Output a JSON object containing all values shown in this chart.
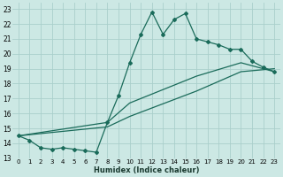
{
  "xlabel": "Humidex (Indice chaleur)",
  "bg_color": "#cce8e4",
  "grid_color": "#aacfcb",
  "line_color": "#1a6b5a",
  "xlim": [
    -0.5,
    23.5
  ],
  "ylim": [
    13,
    23.4
  ],
  "xticks": [
    0,
    1,
    2,
    3,
    4,
    5,
    6,
    7,
    8,
    9,
    10,
    11,
    12,
    13,
    14,
    15,
    16,
    17,
    18,
    19,
    20,
    21,
    22,
    23
  ],
  "yticks": [
    13,
    14,
    15,
    16,
    17,
    18,
    19,
    20,
    21,
    22,
    23
  ],
  "line1_x": [
    0,
    1,
    2,
    3,
    4,
    5,
    6,
    7,
    8,
    9,
    10,
    11,
    12,
    13,
    14,
    15,
    16,
    17,
    18,
    19,
    20,
    21,
    22,
    23
  ],
  "line1_y": [
    14.5,
    14.2,
    13.7,
    13.6,
    13.7,
    13.6,
    13.5,
    13.4,
    15.4,
    17.2,
    19.4,
    21.3,
    22.8,
    21.3,
    22.3,
    22.7,
    21.0,
    20.8,
    20.6,
    20.3,
    20.3,
    19.5,
    19.1,
    18.8
  ],
  "line2_x": [
    0,
    8,
    10,
    16,
    20,
    23
  ],
  "line2_y": [
    14.5,
    15.4,
    16.7,
    18.5,
    19.4,
    18.8
  ],
  "line3_x": [
    0,
    8,
    10,
    16,
    20,
    23
  ],
  "line3_y": [
    14.5,
    15.1,
    15.8,
    17.5,
    18.8,
    19.0
  ]
}
